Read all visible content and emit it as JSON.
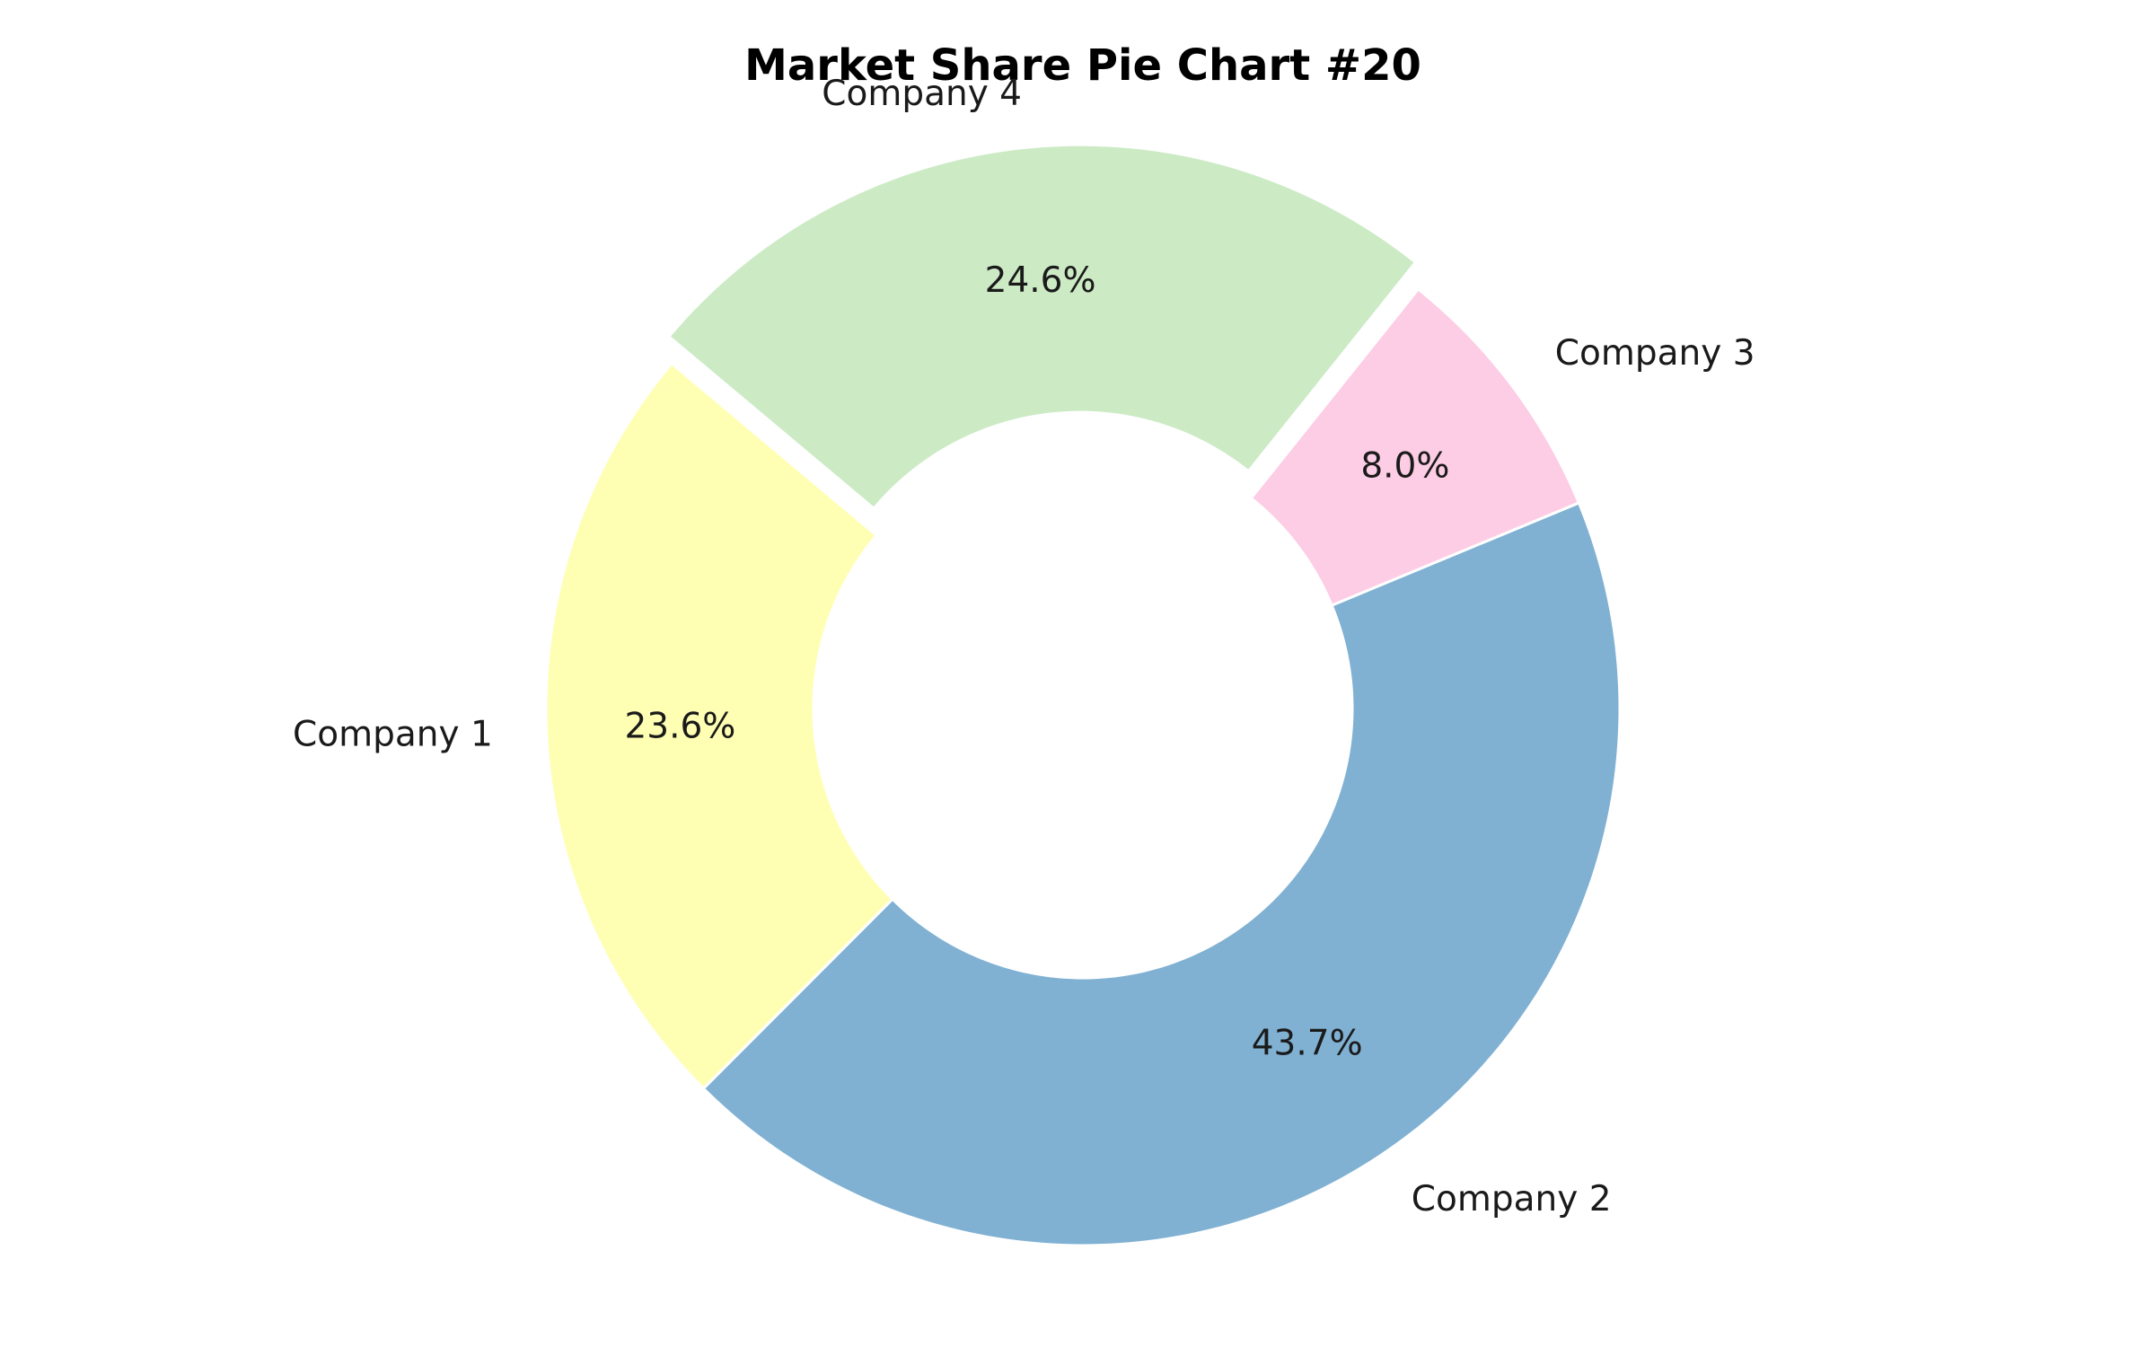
{
  "chart_data": {
    "type": "pie",
    "title": "Market Share Pie Chart #20",
    "donut": true,
    "start_angle_deg": 140,
    "direction": "counterclockwise",
    "slices": [
      {
        "label": "Company 1",
        "value": 23.6,
        "pct_label": "23.6%",
        "color": "#feffb3",
        "explode": false
      },
      {
        "label": "Company 2",
        "value": 43.7,
        "pct_label": "43.7%",
        "color": "#80b1d3",
        "explode": false
      },
      {
        "label": "Company 3",
        "value": 8.0,
        "pct_label": "8.0%",
        "color": "#fccde5",
        "explode": false
      },
      {
        "label": "Company 4",
        "value": 24.6,
        "pct_label": "24.6%",
        "color": "#ccebc5",
        "explode": true
      }
    ]
  }
}
